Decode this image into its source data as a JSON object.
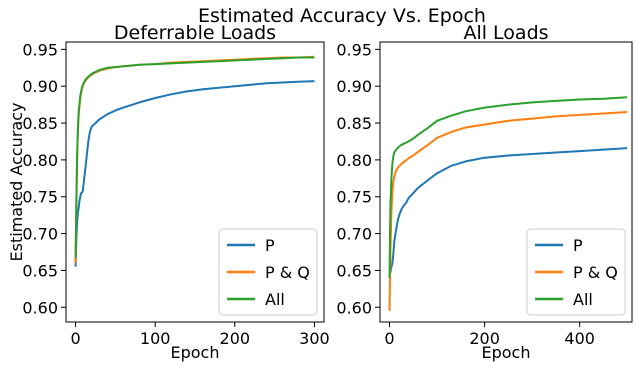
{
  "figure": {
    "suptitle": "Estimated Accuracy Vs. Epoch"
  },
  "colors": {
    "P": "#1f77b4",
    "PQ": "#ff7f0e",
    "All": "#2ca02c"
  },
  "chart_data": [
    {
      "type": "line",
      "title": "Deferrable Loads",
      "xlabel": "Epoch",
      "ylabel": "Estimated Accuracy",
      "xlim": [
        -12,
        312
      ],
      "ylim": [
        0.58,
        0.96
      ],
      "xticks": [
        0,
        100,
        200,
        300
      ],
      "xtick_labels": [
        "0",
        "100",
        "200",
        "300"
      ],
      "yticks": [
        0.6,
        0.65,
        0.7,
        0.75,
        0.8,
        0.85,
        0.9,
        0.95
      ],
      "ytick_labels": [
        "0.60",
        "0.65",
        "0.70",
        "0.75",
        "0.80",
        "0.85",
        "0.90",
        "0.95"
      ],
      "grid": false,
      "legend_position": "lower right",
      "series": [
        {
          "name": "P",
          "color": "#1f77b4",
          "x": [
            0,
            1,
            2,
            3,
            4,
            5,
            7,
            9,
            12,
            14,
            16,
            18,
            20,
            25,
            30,
            40,
            50,
            60,
            80,
            100,
            120,
            140,
            160,
            180,
            200,
            220,
            240,
            260,
            280,
            300
          ],
          "y": [
            0.655,
            0.695,
            0.715,
            0.728,
            0.735,
            0.745,
            0.755,
            0.757,
            0.785,
            0.805,
            0.825,
            0.838,
            0.845,
            0.85,
            0.855,
            0.862,
            0.867,
            0.871,
            0.878,
            0.884,
            0.889,
            0.893,
            0.896,
            0.898,
            0.9,
            0.902,
            0.904,
            0.905,
            0.906,
            0.907
          ]
        },
        {
          "name": "P & Q",
          "color": "#ff7f0e",
          "x": [
            0,
            1,
            2,
            3,
            4,
            6,
            8,
            10,
            12,
            15,
            18,
            22,
            26,
            30,
            40,
            50,
            60,
            80,
            100,
            120,
            140,
            160,
            180,
            200,
            220,
            240,
            260,
            280,
            300
          ],
          "y": [
            0.66,
            0.742,
            0.8,
            0.838,
            0.862,
            0.884,
            0.896,
            0.903,
            0.907,
            0.911,
            0.914,
            0.917,
            0.919,
            0.921,
            0.924,
            0.926,
            0.927,
            0.929,
            0.93,
            0.932,
            0.933,
            0.934,
            0.935,
            0.936,
            0.937,
            0.938,
            0.939,
            0.939,
            0.94
          ]
        },
        {
          "name": "All",
          "color": "#2ca02c",
          "x": [
            0,
            1,
            2,
            3,
            4,
            6,
            8,
            10,
            12,
            15,
            18,
            22,
            26,
            30,
            40,
            50,
            60,
            80,
            100,
            120,
            140,
            160,
            180,
            200,
            220,
            240,
            260,
            280,
            300
          ],
          "y": [
            0.667,
            0.748,
            0.806,
            0.843,
            0.866,
            0.887,
            0.898,
            0.904,
            0.908,
            0.912,
            0.915,
            0.918,
            0.92,
            0.922,
            0.925,
            0.926,
            0.927,
            0.929,
            0.93,
            0.931,
            0.932,
            0.933,
            0.934,
            0.935,
            0.936,
            0.937,
            0.938,
            0.939,
            0.939
          ]
        }
      ]
    },
    {
      "type": "line",
      "title": "All Loads",
      "xlabel": "Epoch",
      "ylabel": "",
      "xlim": [
        -20,
        510
      ],
      "ylim": [
        0.58,
        0.96
      ],
      "xticks": [
        0,
        200,
        400
      ],
      "xtick_labels": [
        "0",
        "200",
        "400"
      ],
      "yticks": [
        0.6,
        0.65,
        0.7,
        0.75,
        0.8,
        0.85,
        0.9,
        0.95
      ],
      "ytick_labels": [
        "0.60",
        "0.65",
        "0.70",
        "0.75",
        "0.80",
        "0.85",
        "0.90",
        "0.95"
      ],
      "grid": false,
      "legend_position": "lower right",
      "series": [
        {
          "name": "P",
          "color": "#1f77b4",
          "x": [
            0,
            2,
            4,
            6,
            8,
            10,
            14,
            18,
            22,
            26,
            30,
            35,
            40,
            50,
            60,
            80,
            100,
            130,
            160,
            200,
            250,
            300,
            350,
            400,
            450,
            500
          ],
          "y": [
            0.645,
            0.648,
            0.655,
            0.66,
            0.672,
            0.69,
            0.706,
            0.72,
            0.728,
            0.734,
            0.738,
            0.742,
            0.748,
            0.755,
            0.762,
            0.772,
            0.782,
            0.792,
            0.798,
            0.803,
            0.806,
            0.808,
            0.81,
            0.812,
            0.814,
            0.816
          ]
        },
        {
          "name": "P & Q",
          "color": "#ff7f0e",
          "x": [
            0,
            1,
            2,
            4,
            6,
            8,
            10,
            14,
            18,
            24,
            30,
            40,
            50,
            60,
            80,
            100,
            130,
            160,
            200,
            250,
            300,
            350,
            400,
            450,
            500
          ],
          "y": [
            0.595,
            0.64,
            0.68,
            0.73,
            0.755,
            0.77,
            0.778,
            0.786,
            0.79,
            0.794,
            0.797,
            0.802,
            0.806,
            0.811,
            0.82,
            0.83,
            0.838,
            0.844,
            0.848,
            0.853,
            0.856,
            0.859,
            0.861,
            0.863,
            0.865
          ]
        },
        {
          "name": "All",
          "color": "#2ca02c",
          "x": [
            0,
            1,
            2,
            4,
            6,
            8,
            10,
            14,
            18,
            24,
            30,
            40,
            50,
            60,
            80,
            100,
            130,
            160,
            200,
            250,
            300,
            350,
            400,
            450,
            500
          ],
          "y": [
            0.64,
            0.7,
            0.74,
            0.775,
            0.795,
            0.805,
            0.81,
            0.814,
            0.817,
            0.82,
            0.822,
            0.825,
            0.829,
            0.834,
            0.843,
            0.853,
            0.86,
            0.866,
            0.871,
            0.875,
            0.878,
            0.88,
            0.882,
            0.883,
            0.885
          ]
        }
      ]
    }
  ]
}
